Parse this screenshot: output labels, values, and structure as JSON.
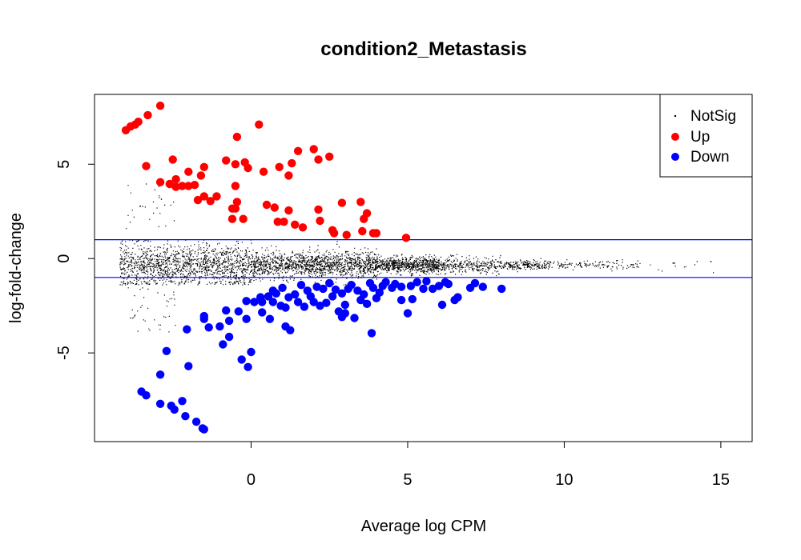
{
  "chart_data": {
    "type": "scatter",
    "title": "condition2_Metastasis",
    "xlabel": "Average log CPM",
    "ylabel": "log-fold-change",
    "xlim": [
      -5,
      16
    ],
    "ylim": [
      -9.7,
      8.7
    ],
    "xticks": [
      0,
      5,
      10,
      15
    ],
    "yticks": [
      -5,
      0,
      5
    ],
    "hlines": [
      1,
      -1
    ],
    "grid": false,
    "legend": {
      "position": "top-right",
      "entries": [
        {
          "label": "NotSig",
          "color": "#000000",
          "marker": "small-dot"
        },
        {
          "label": "Up",
          "color": "#ff0000",
          "marker": "dot"
        },
        {
          "label": "Down",
          "color": "#0000ff",
          "marker": "dot"
        }
      ]
    },
    "series": [
      {
        "name": "Up",
        "color": "#ff0000",
        "points": [
          [
            -4.0,
            6.8
          ],
          [
            -3.85,
            7.0
          ],
          [
            -3.7,
            7.1
          ],
          [
            -3.6,
            7.25
          ],
          [
            -3.3,
            7.6
          ],
          [
            -2.9,
            8.1
          ],
          [
            -3.35,
            4.9
          ],
          [
            -2.9,
            4.05
          ],
          [
            -2.6,
            3.95
          ],
          [
            -2.4,
            4.2
          ],
          [
            -2.4,
            3.8
          ],
          [
            -2.2,
            3.85
          ],
          [
            -2.0,
            3.85
          ],
          [
            -1.8,
            3.9
          ],
          [
            -2.0,
            4.6
          ],
          [
            -2.5,
            5.25
          ],
          [
            -1.6,
            4.4
          ],
          [
            -1.5,
            4.85
          ],
          [
            -1.5,
            3.3
          ],
          [
            -1.3,
            3.05
          ],
          [
            -1.1,
            3.3
          ],
          [
            -0.8,
            5.2
          ],
          [
            -0.5,
            5.0
          ],
          [
            -0.5,
            3.85
          ],
          [
            -0.45,
            3.0
          ],
          [
            -0.5,
            2.65
          ],
          [
            -0.6,
            2.1
          ],
          [
            -0.25,
            2.1
          ],
          [
            -0.2,
            5.1
          ],
          [
            -0.1,
            4.8
          ],
          [
            0.25,
            7.1
          ],
          [
            0.4,
            4.6
          ],
          [
            0.5,
            2.85
          ],
          [
            0.75,
            2.7
          ],
          [
            0.9,
            4.85
          ],
          [
            0.85,
            1.95
          ],
          [
            1.05,
            1.95
          ],
          [
            1.2,
            2.55
          ],
          [
            1.2,
            4.4
          ],
          [
            1.3,
            5.05
          ],
          [
            1.4,
            1.8
          ],
          [
            1.5,
            5.7
          ],
          [
            1.65,
            1.65
          ],
          [
            2.0,
            5.8
          ],
          [
            2.15,
            5.25
          ],
          [
            2.15,
            2.6
          ],
          [
            2.2,
            2.0
          ],
          [
            2.5,
            5.4
          ],
          [
            2.6,
            1.5
          ],
          [
            2.65,
            1.35
          ],
          [
            2.9,
            2.95
          ],
          [
            3.05,
            1.25
          ],
          [
            3.5,
            3.0
          ],
          [
            3.6,
            2.1
          ],
          [
            3.55,
            1.45
          ],
          [
            3.7,
            2.4
          ],
          [
            3.9,
            1.35
          ],
          [
            4.0,
            1.35
          ],
          [
            4.95,
            1.1
          ],
          [
            -0.45,
            6.45
          ],
          [
            -0.6,
            2.65
          ],
          [
            -1.7,
            3.1
          ]
        ]
      },
      {
        "name": "Down",
        "color": "#0000ff",
        "points": [
          [
            -3.5,
            -7.05
          ],
          [
            -3.35,
            -7.25
          ],
          [
            -2.9,
            -7.7
          ],
          [
            -2.55,
            -7.8
          ],
          [
            -2.45,
            -8.0
          ],
          [
            -2.2,
            -7.55
          ],
          [
            -2.1,
            -8.35
          ],
          [
            -1.75,
            -8.65
          ],
          [
            -1.55,
            -9.0
          ],
          [
            -1.5,
            -9.05
          ],
          [
            -2.9,
            -6.15
          ],
          [
            -2.7,
            -4.9
          ],
          [
            -2.0,
            -5.7
          ],
          [
            -2.05,
            -3.75
          ],
          [
            -1.5,
            -3.05
          ],
          [
            -1.35,
            -3.65
          ],
          [
            -1.5,
            -3.2
          ],
          [
            -1.0,
            -3.6
          ],
          [
            -0.9,
            -4.55
          ],
          [
            -0.8,
            -2.75
          ],
          [
            -0.7,
            -4.15
          ],
          [
            -0.7,
            -3.3
          ],
          [
            -0.4,
            -2.8
          ],
          [
            -0.3,
            -5.35
          ],
          [
            -0.1,
            -5.75
          ],
          [
            0.0,
            -4.95
          ],
          [
            -0.15,
            -3.2
          ],
          [
            -0.15,
            -2.25
          ],
          [
            0.1,
            -2.3
          ],
          [
            0.35,
            -2.3
          ],
          [
            0.35,
            -2.85
          ],
          [
            0.55,
            -2.0
          ],
          [
            0.6,
            -3.2
          ],
          [
            0.7,
            -2.3
          ],
          [
            0.8,
            -1.85
          ],
          [
            0.95,
            -2.5
          ],
          [
            1.1,
            -2.6
          ],
          [
            1.1,
            -3.6
          ],
          [
            1.25,
            -3.8
          ],
          [
            1.2,
            -2.05
          ],
          [
            1.5,
            -2.3
          ],
          [
            1.7,
            -2.55
          ],
          [
            1.9,
            -2.0
          ],
          [
            2.0,
            -2.3
          ],
          [
            2.2,
            -2.5
          ],
          [
            2.4,
            -2.35
          ],
          [
            2.6,
            -2.0
          ],
          [
            2.8,
            -2.8
          ],
          [
            2.9,
            -3.1
          ],
          [
            3.0,
            -2.9
          ],
          [
            3.3,
            -3.15
          ],
          [
            3.0,
            -2.45
          ],
          [
            3.5,
            -2.2
          ],
          [
            3.7,
            -2.4
          ],
          [
            3.85,
            -3.95
          ],
          [
            4.0,
            -2.1
          ],
          [
            4.1,
            -1.8
          ],
          [
            4.5,
            -1.55
          ],
          [
            4.8,
            -2.2
          ],
          [
            5.0,
            -2.9
          ],
          [
            5.15,
            -2.15
          ],
          [
            5.5,
            -1.6
          ],
          [
            5.8,
            -1.6
          ],
          [
            6.0,
            -1.45
          ],
          [
            6.3,
            -1.35
          ],
          [
            6.1,
            -2.45
          ],
          [
            6.5,
            -2.2
          ],
          [
            6.6,
            -2.05
          ],
          [
            7.0,
            -1.55
          ],
          [
            7.15,
            -1.3
          ],
          [
            7.4,
            -1.5
          ],
          [
            8.0,
            -1.6
          ],
          [
            1.6,
            -1.4
          ],
          [
            2.1,
            -1.5
          ],
          [
            2.5,
            -1.3
          ],
          [
            3.2,
            -1.4
          ],
          [
            3.8,
            -1.3
          ],
          [
            4.3,
            -1.25
          ],
          [
            4.6,
            -1.35
          ],
          [
            5.3,
            -1.25
          ],
          [
            5.6,
            -1.2
          ],
          [
            6.2,
            -1.25
          ],
          [
            0.7,
            -1.7
          ],
          [
            1.0,
            -1.55
          ],
          [
            1.8,
            -1.7
          ],
          [
            2.3,
            -1.6
          ],
          [
            2.7,
            -1.65
          ],
          [
            3.1,
            -1.6
          ],
          [
            3.4,
            -1.7
          ],
          [
            3.9,
            -1.55
          ],
          [
            4.2,
            -1.45
          ],
          [
            4.8,
            -1.5
          ],
          [
            5.1,
            -1.45
          ],
          [
            0.3,
            -2.05
          ],
          [
            1.4,
            -1.9
          ],
          [
            2.9,
            -1.85
          ],
          [
            3.6,
            -1.9
          ]
        ]
      }
    ]
  }
}
